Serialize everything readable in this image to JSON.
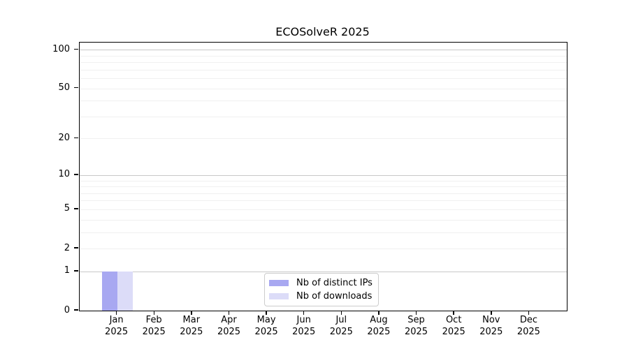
{
  "chart_data": {
    "type": "bar",
    "title": "ECOSolveR 2025",
    "categories": [
      "Jan",
      "Feb",
      "Mar",
      "Apr",
      "May",
      "Jun",
      "Jul",
      "Aug",
      "Sep",
      "Oct",
      "Nov",
      "Dec"
    ],
    "category_year": "2025",
    "series": [
      {
        "name": "Nb of distinct IPs",
        "color": "#a8a8f1",
        "values": [
          1,
          0,
          0,
          0,
          0,
          0,
          0,
          0,
          0,
          0,
          0,
          0
        ]
      },
      {
        "name": "Nb of downloads",
        "color": "#dcdcf8",
        "values": [
          1,
          0,
          0,
          0,
          0,
          0,
          0,
          0,
          0,
          0,
          0,
          0
        ]
      }
    ],
    "yscale": "log1p",
    "ylim": [
      0,
      113.6
    ],
    "ytick_values": [
      0,
      1,
      2,
      5,
      10,
      20,
      50,
      100
    ],
    "grid": true,
    "grid_minor_values": [
      2,
      3,
      4,
      5,
      6,
      7,
      8,
      9,
      20,
      30,
      40,
      50,
      60,
      70,
      80,
      90
    ],
    "grid_major_values": [
      1,
      10,
      100
    ],
    "grid_minor_color": "#f0f0f0",
    "grid_major_color": "#c8c8c8",
    "legend_position": "lower center",
    "xlabel": "",
    "ylabel": ""
  }
}
